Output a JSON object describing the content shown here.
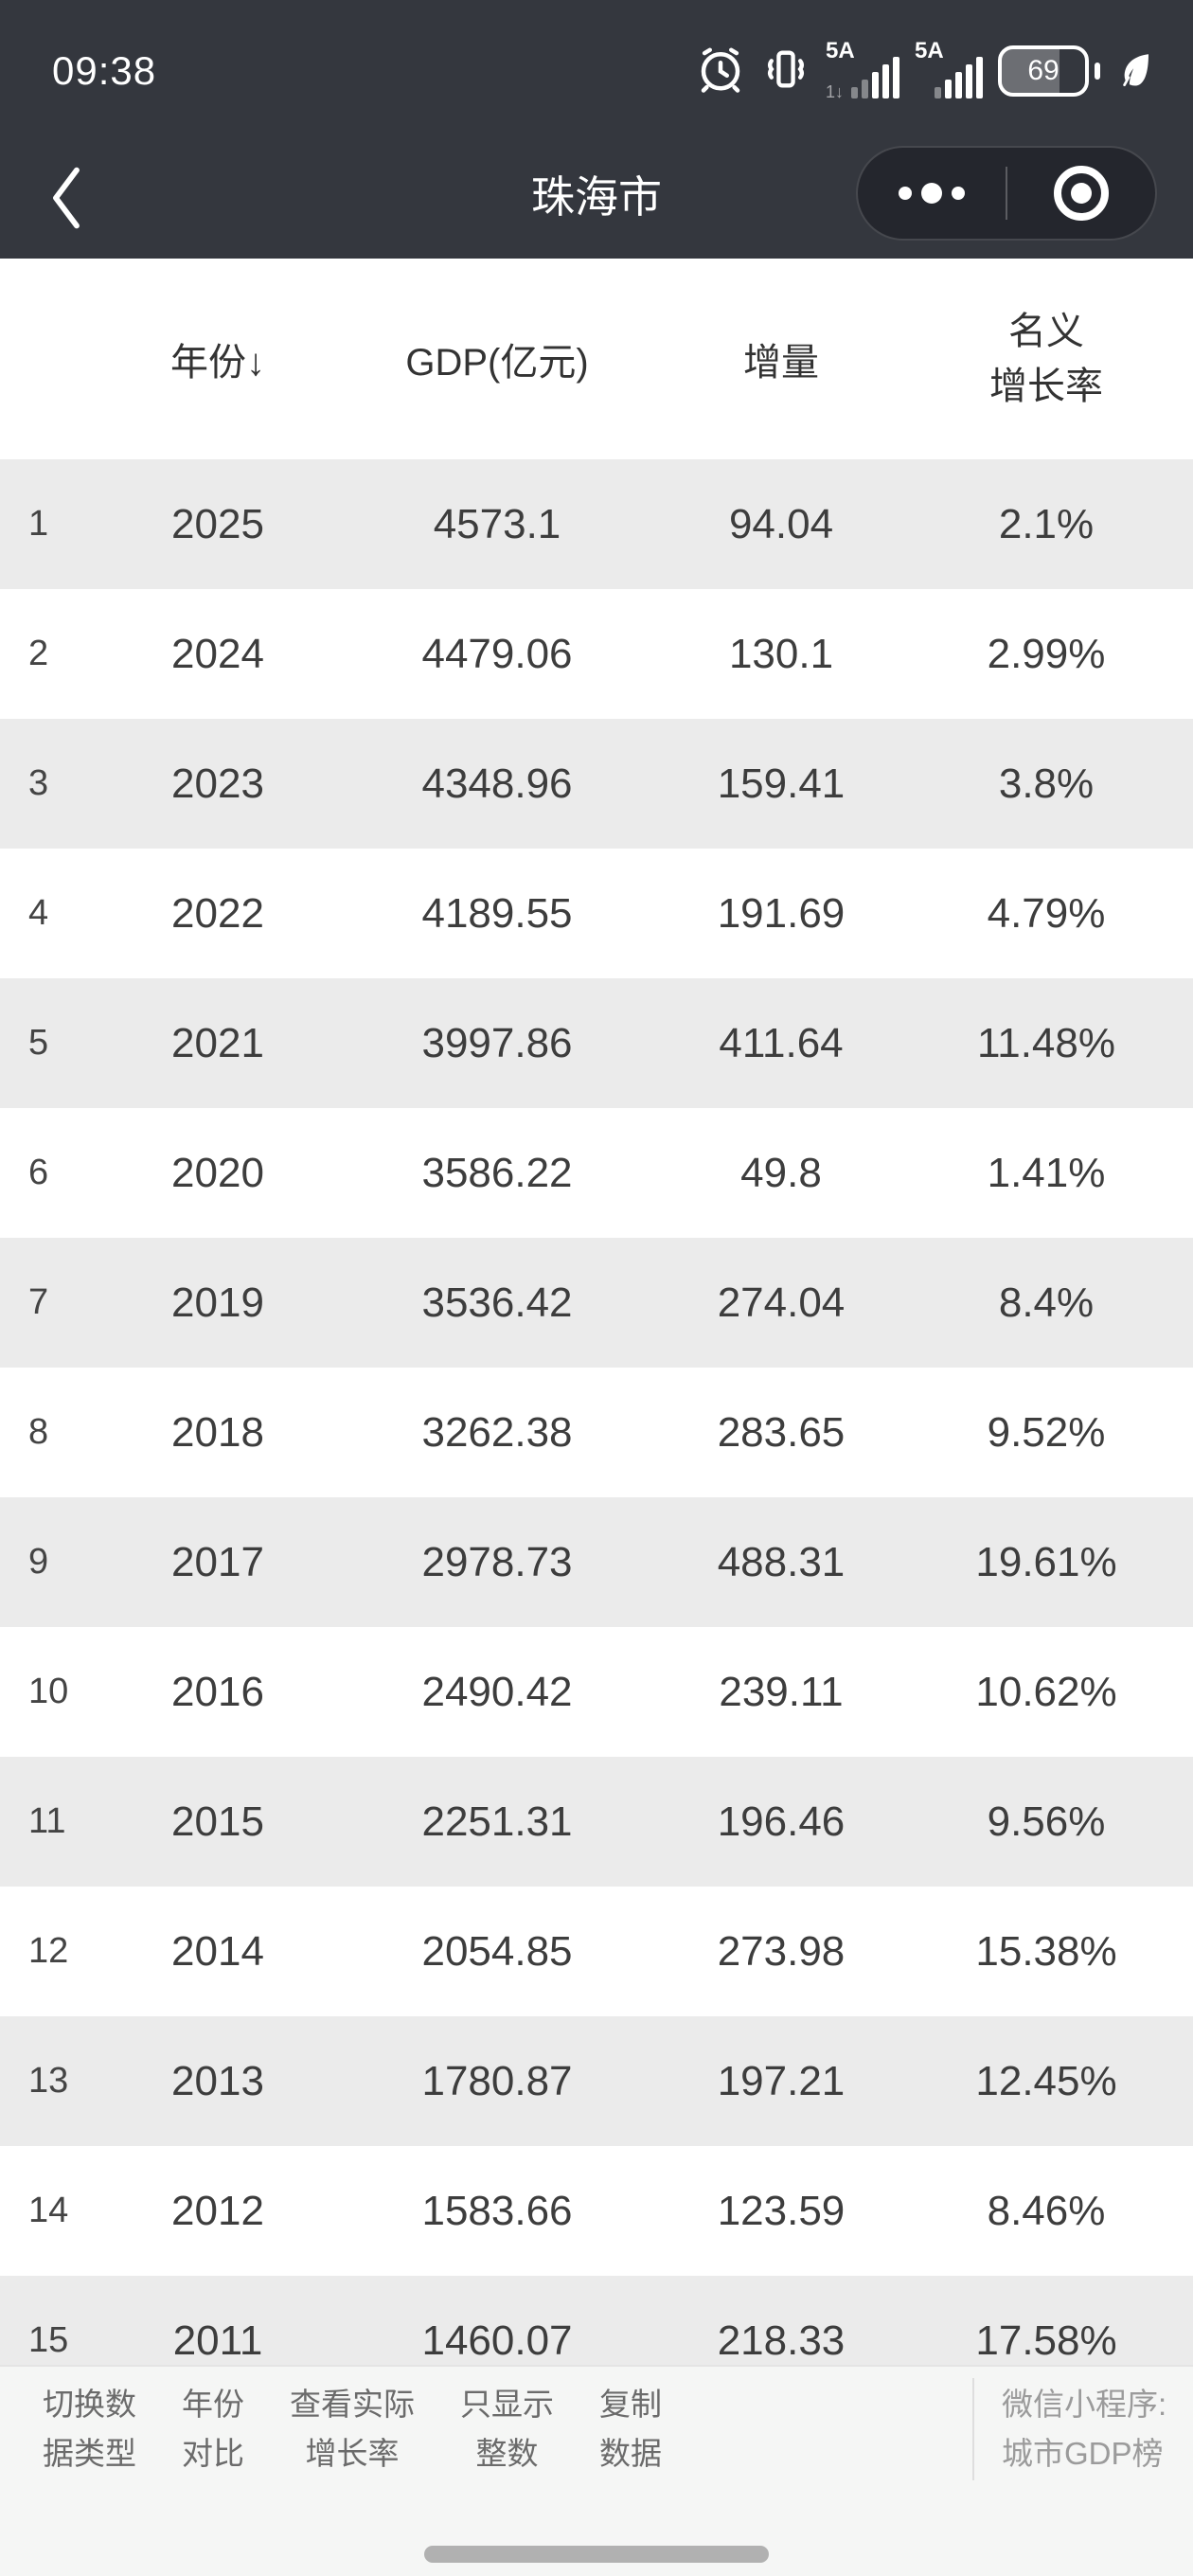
{
  "status_bar": {
    "time": "09:38",
    "battery_percent": "69",
    "network_type_sim1": "5A",
    "network_type_sim2": "5A",
    "sim1_tag": "1↓"
  },
  "nav": {
    "title": "珠海市"
  },
  "table": {
    "headers": [
      "年份↓",
      "GDP(亿元)",
      "增量"
    ],
    "rate_header_line1": "名义",
    "rate_header_line2": "增长率",
    "rows": [
      {
        "idx": "1",
        "year": "2025",
        "gdp": "4573.1",
        "delta": "94.04",
        "rate": "2.1%"
      },
      {
        "idx": "2",
        "year": "2024",
        "gdp": "4479.06",
        "delta": "130.1",
        "rate": "2.99%"
      },
      {
        "idx": "3",
        "year": "2023",
        "gdp": "4348.96",
        "delta": "159.41",
        "rate": "3.8%"
      },
      {
        "idx": "4",
        "year": "2022",
        "gdp": "4189.55",
        "delta": "191.69",
        "rate": "4.79%"
      },
      {
        "idx": "5",
        "year": "2021",
        "gdp": "3997.86",
        "delta": "411.64",
        "rate": "11.48%"
      },
      {
        "idx": "6",
        "year": "2020",
        "gdp": "3586.22",
        "delta": "49.8",
        "rate": "1.41%"
      },
      {
        "idx": "7",
        "year": "2019",
        "gdp": "3536.42",
        "delta": "274.04",
        "rate": "8.4%"
      },
      {
        "idx": "8",
        "year": "2018",
        "gdp": "3262.38",
        "delta": "283.65",
        "rate": "9.52%"
      },
      {
        "idx": "9",
        "year": "2017",
        "gdp": "2978.73",
        "delta": "488.31",
        "rate": "19.61%"
      },
      {
        "idx": "10",
        "year": "2016",
        "gdp": "2490.42",
        "delta": "239.11",
        "rate": "10.62%"
      },
      {
        "idx": "11",
        "year": "2015",
        "gdp": "2251.31",
        "delta": "196.46",
        "rate": "9.56%"
      },
      {
        "idx": "12",
        "year": "2014",
        "gdp": "2054.85",
        "delta": "273.98",
        "rate": "15.38%"
      },
      {
        "idx": "13",
        "year": "2013",
        "gdp": "1780.87",
        "delta": "197.21",
        "rate": "12.45%"
      },
      {
        "idx": "14",
        "year": "2012",
        "gdp": "1583.66",
        "delta": "123.59",
        "rate": "8.46%"
      },
      {
        "idx": "15",
        "year": "2011",
        "gdp": "1460.07",
        "delta": "218.33",
        "rate": "17.58%"
      }
    ]
  },
  "toolbar": {
    "buttons": [
      {
        "name": "toolbar-button-toggle-data-type",
        "line1": "切换数",
        "line2": "据类型"
      },
      {
        "name": "toolbar-button-year-compare",
        "line1": "年份",
        "line2": "对比"
      },
      {
        "name": "toolbar-button-real-growth-rate",
        "line1": "查看实际",
        "line2": "增长率"
      },
      {
        "name": "toolbar-button-integers-only",
        "line1": "只显示",
        "line2": "整数"
      },
      {
        "name": "toolbar-button-copy-data",
        "line1": "复制",
        "line2": "数据"
      }
    ],
    "source_line1": "微信小程序:",
    "source_line2": "城市GDP榜"
  },
  "colors": {
    "header_bg": "#34373e",
    "row_alt_bg": "#ebebeb",
    "toolbar_bg": "#f5f6f5",
    "toolbar_text": "#6b6b6b",
    "source_text": "#9b9b9b",
    "home_indicator": "#b1b1b1"
  }
}
